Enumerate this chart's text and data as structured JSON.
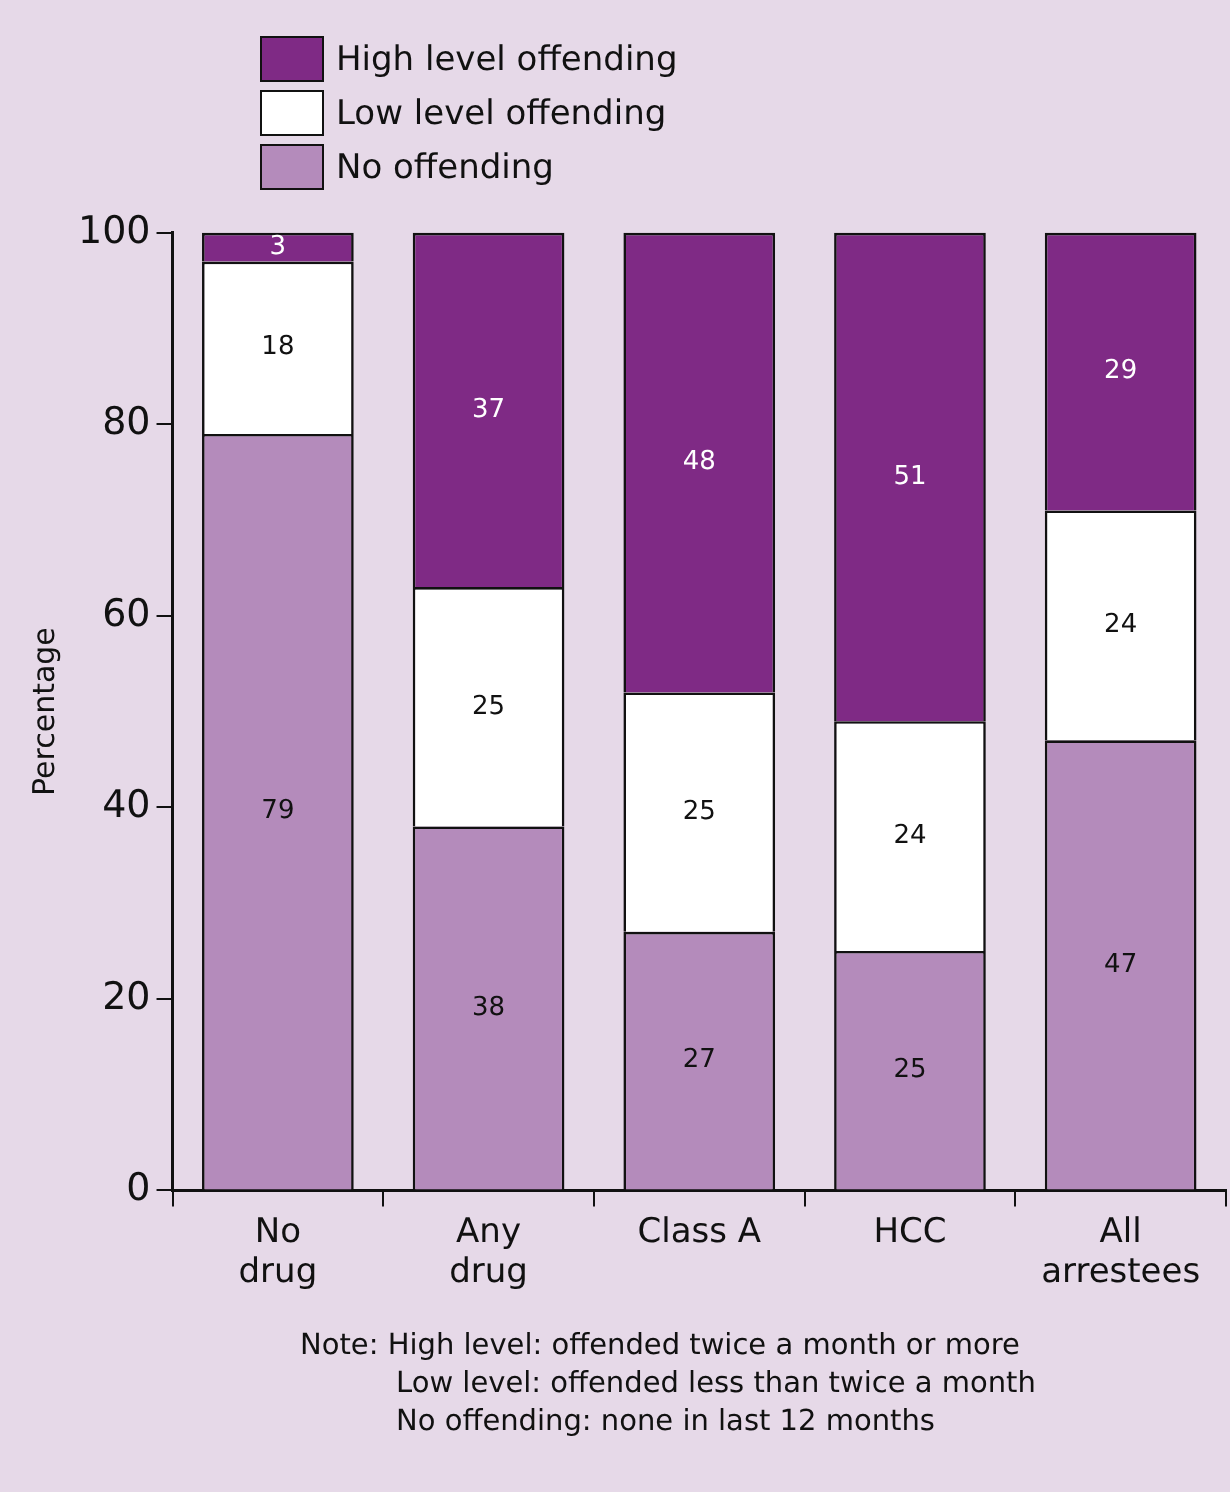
{
  "chart_data": {
    "type": "bar",
    "stacked": true,
    "ylabel": "Percentage",
    "categories": [
      "No\ndrug",
      "Any\ndrug",
      "Class A",
      "HCC",
      "All\narrestees"
    ],
    "series": [
      {
        "name": "No offending",
        "color": "#b48bbb",
        "values": [
          79,
          38,
          27,
          25,
          47
        ]
      },
      {
        "name": "Low level offending",
        "color": "#ffffff",
        "values": [
          18,
          25,
          25,
          24,
          24
        ]
      },
      {
        "name": "High level offending",
        "color": "#7f2a85",
        "values": [
          3,
          37,
          48,
          51,
          29
        ]
      }
    ],
    "ylim": [
      0,
      100
    ],
    "yticks": [
      0,
      20,
      40,
      60,
      80,
      100
    ],
    "grid": false,
    "legend": "top",
    "data_labels": true,
    "annotations": [
      "Note: High level: offended twice a month or more\nLow level: offended less than twice a month\nNo offending: none in last 12 months"
    ]
  }
}
